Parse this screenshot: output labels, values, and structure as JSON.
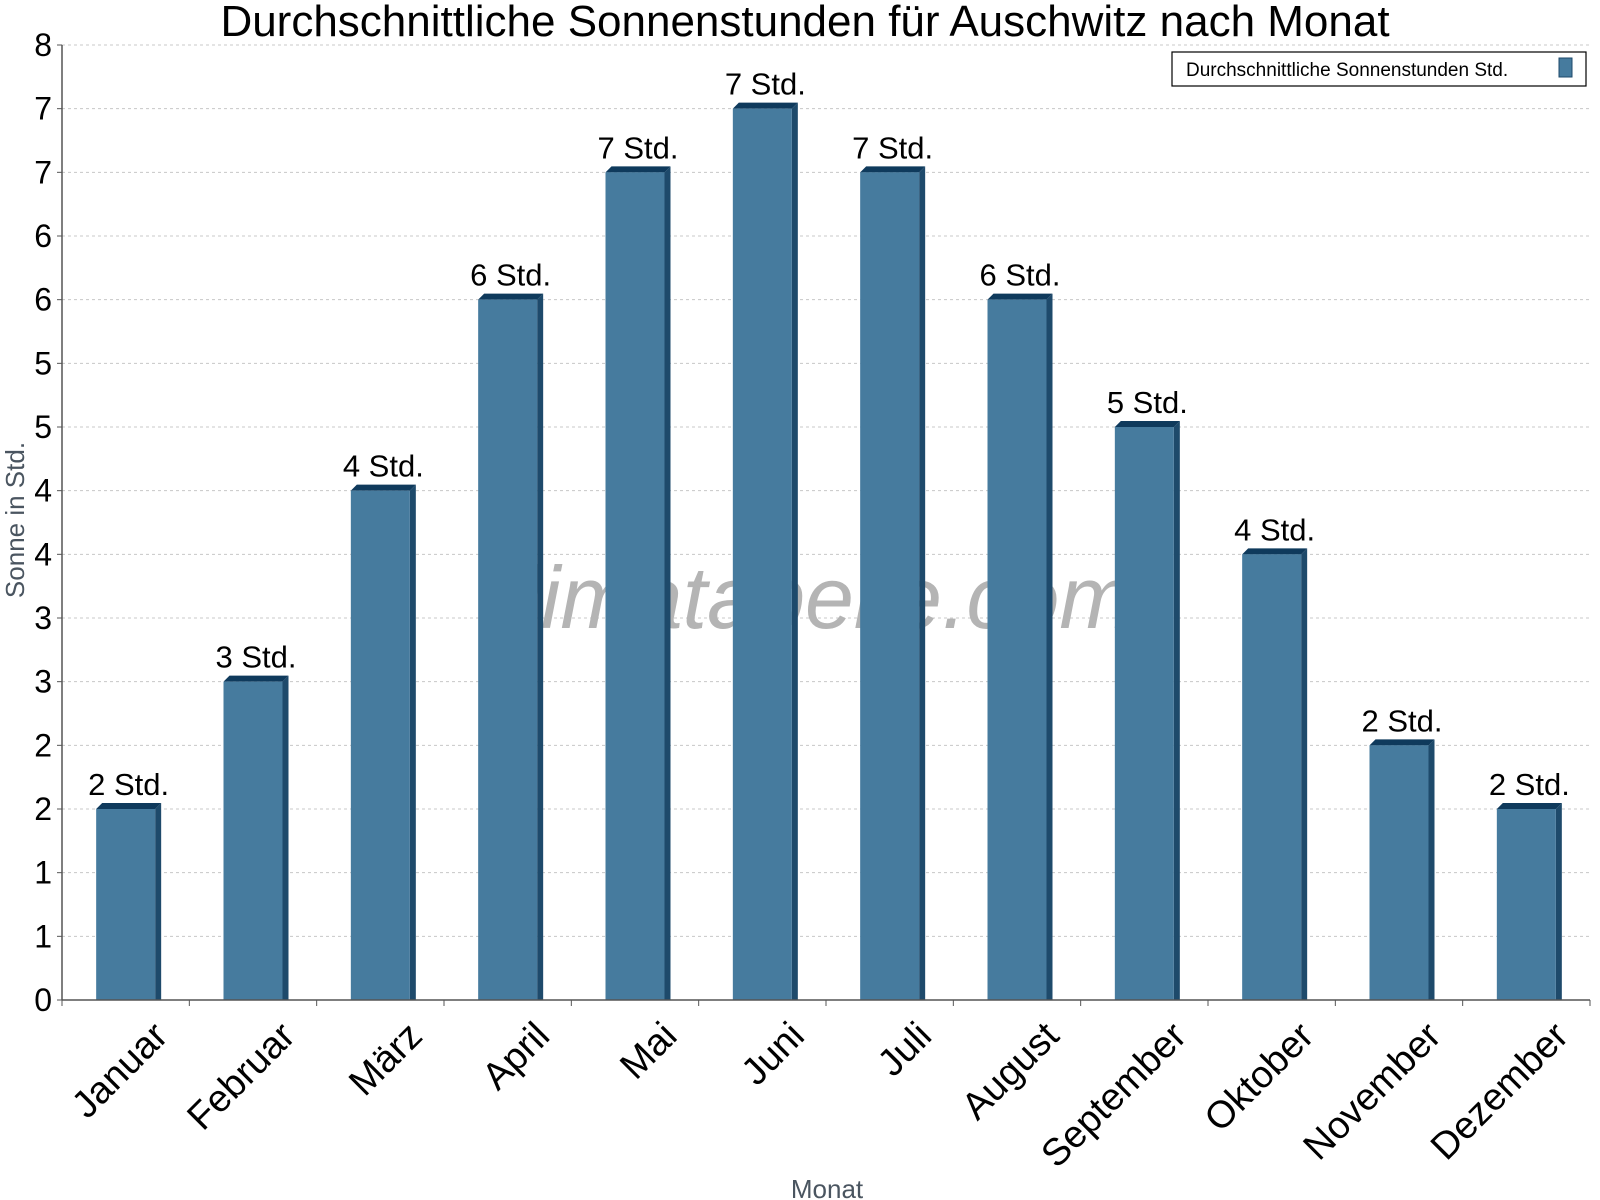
{
  "chart_data": {
    "type": "bar",
    "title": "Durchschnittliche Sonnenstunden für Auschwitz nach Monat",
    "xlabel": "Monat",
    "ylabel": "Sonne in Std.",
    "ylim": [
      0,
      7.5
    ],
    "y_ticks": [
      {
        "value": 0,
        "label": "0"
      },
      {
        "value": 0.5,
        "label": "1"
      },
      {
        "value": 1,
        "label": "1"
      },
      {
        "value": 1.5,
        "label": "2"
      },
      {
        "value": 2,
        "label": "2"
      },
      {
        "value": 2.5,
        "label": "3"
      },
      {
        "value": 3,
        "label": "3"
      },
      {
        "value": 3.5,
        "label": "4"
      },
      {
        "value": 4,
        "label": "4"
      },
      {
        "value": 4.5,
        "label": "5"
      },
      {
        "value": 5,
        "label": "5"
      },
      {
        "value": 5.5,
        "label": "6"
      },
      {
        "value": 6,
        "label": "6"
      },
      {
        "value": 6.5,
        "label": "7"
      },
      {
        "value": 7,
        "label": "7"
      },
      {
        "value": 7.5,
        "label": "8"
      }
    ],
    "categories": [
      "Januar",
      "Februar",
      "März",
      "April",
      "Mai",
      "Juni",
      "Juli",
      "August",
      "September",
      "Oktober",
      "November",
      "Dezember"
    ],
    "series": [
      {
        "name": "Durchschnittliche Sonnenstunden Std.",
        "values": [
          1.5,
          2.5,
          4,
          5.5,
          6.5,
          7,
          6.5,
          5.5,
          4.5,
          3.5,
          2,
          1.5
        ],
        "labels": [
          "2 Std.",
          "3 Std.",
          "4 Std.",
          "6 Std.",
          "7 Std.",
          "7 Std.",
          "7 Std.",
          "6 Std.",
          "5 Std.",
          "4 Std.",
          "2 Std.",
          "2 Std."
        ]
      }
    ],
    "grid": true,
    "legend_position": "top-right",
    "colors": {
      "bar": "#467b9e",
      "bar_side": "#1e4a6b",
      "bar_top": "#0f3a5c",
      "grid": "#c8c8c8",
      "axis": "#555555"
    }
  },
  "watermark": "klimatabelle.com"
}
